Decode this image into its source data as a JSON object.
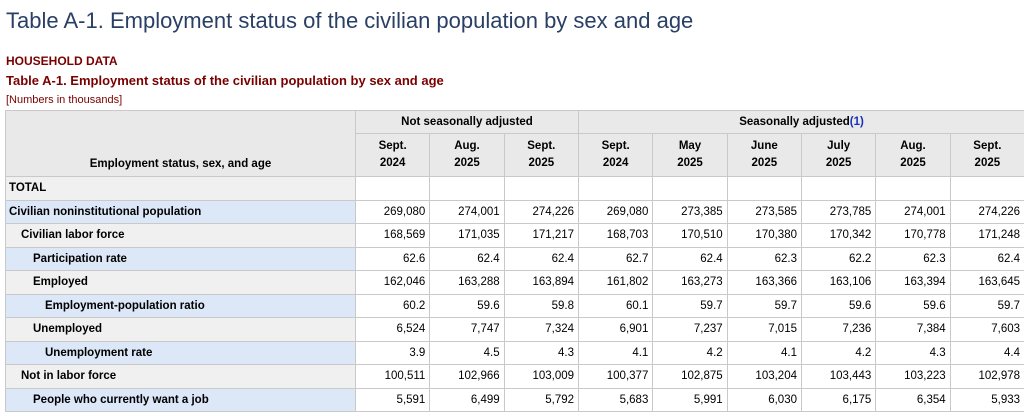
{
  "page_title": "Table A-1. Employment status of the civilian population by sex and age",
  "section_label": "HOUSEHOLD DATA",
  "table_title": "Table A-1. Employment status of the civilian population by sex and age",
  "units_note": "[Numbers in thousands]",
  "header": {
    "stub_label": "Employment status, sex, and age",
    "group_nsa": "Not seasonally adjusted",
    "group_sa": "Seasonally adjusted",
    "footnote_ref": "(1)",
    "periods": [
      {
        "month": "Sept.",
        "year": "2024"
      },
      {
        "month": "Aug.",
        "year": "2025"
      },
      {
        "month": "Sept.",
        "year": "2025"
      },
      {
        "month": "Sept.",
        "year": "2024"
      },
      {
        "month": "May",
        "year": "2025"
      },
      {
        "month": "June",
        "year": "2025"
      },
      {
        "month": "July",
        "year": "2025"
      },
      {
        "month": "Aug.",
        "year": "2025"
      },
      {
        "month": "Sept.",
        "year": "2025"
      }
    ]
  },
  "rows": [
    {
      "label": "TOTAL",
      "values": [
        "",
        "",
        "",
        "",
        "",
        "",
        "",
        "",
        ""
      ]
    },
    {
      "label": "Civilian noninstitutional population",
      "values": [
        "269,080",
        "274,001",
        "274,226",
        "269,080",
        "273,385",
        "273,585",
        "273,785",
        "274,001",
        "274,226"
      ]
    },
    {
      "label": "Civilian labor force",
      "values": [
        "168,569",
        "171,035",
        "171,217",
        "168,703",
        "170,510",
        "170,380",
        "170,342",
        "170,778",
        "171,248"
      ]
    },
    {
      "label": "Participation rate",
      "values": [
        "62.6",
        "62.4",
        "62.4",
        "62.7",
        "62.4",
        "62.3",
        "62.2",
        "62.3",
        "62.4"
      ]
    },
    {
      "label": "Employed",
      "values": [
        "162,046",
        "163,288",
        "163,894",
        "161,802",
        "163,273",
        "163,366",
        "163,106",
        "163,394",
        "163,645"
      ]
    },
    {
      "label": "Employment-population ratio",
      "values": [
        "60.2",
        "59.6",
        "59.8",
        "60.1",
        "59.7",
        "59.7",
        "59.6",
        "59.6",
        "59.7"
      ]
    },
    {
      "label": "Unemployed",
      "values": [
        "6,524",
        "7,747",
        "7,324",
        "6,901",
        "7,237",
        "7,015",
        "7,236",
        "7,384",
        "7,603"
      ]
    },
    {
      "label": "Unemployment rate",
      "values": [
        "3.9",
        "4.5",
        "4.3",
        "4.1",
        "4.2",
        "4.1",
        "4.2",
        "4.3",
        "4.4"
      ]
    },
    {
      "label": "Not in labor force",
      "values": [
        "100,511",
        "102,966",
        "103,009",
        "100,377",
        "102,875",
        "103,204",
        "103,443",
        "103,223",
        "102,978"
      ]
    },
    {
      "label": "People who currently want a job",
      "values": [
        "5,591",
        "6,499",
        "5,792",
        "5,683",
        "5,991",
        "6,030",
        "6,175",
        "6,354",
        "5,933"
      ]
    }
  ]
}
